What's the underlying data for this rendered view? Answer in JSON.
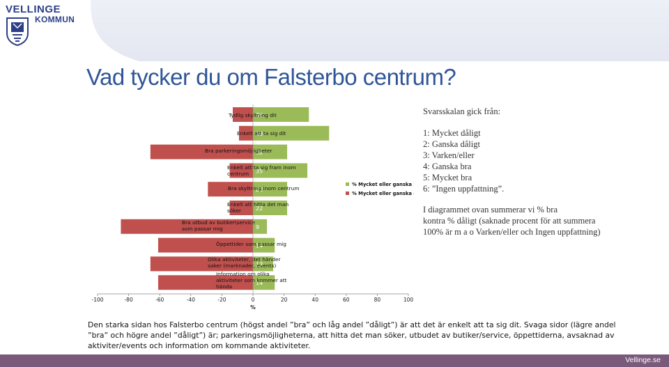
{
  "header": {
    "logo_name": "VELLINGE",
    "logo_sub": "KOMMUN",
    "logo_seal": "shield-icon"
  },
  "title": "Vad tycker du om Falsterbo centrum?",
  "chart_data": {
    "type": "bar",
    "orientation": "horizontal-diverging",
    "categories": [
      "Tydlig skyltning dit",
      "Enkelt att ta sig dit",
      "Bra parkeringsmöjligheter",
      "Enkelt att ta sig fram inom centrum",
      "Bra skyltning inom centrum",
      "Enkelt att hitta det man söker",
      "Bra utbud av butiker\\service som passar mig",
      "Öppettider som passar mig",
      "Olika aktiviteter, det händer saker (marknader, events)",
      "Information om olika aktiviteter som kommer att hända"
    ],
    "series": [
      {
        "name": "% Mycket eller ganska bra",
        "values": [
          36,
          49,
          22,
          35,
          22,
          22,
          9,
          14,
          13,
          14
        ],
        "color": "#9bbb59"
      },
      {
        "name": "% Mycket eller ganska dåligt",
        "values": [
          -13,
          -9,
          -66,
          -15,
          -29,
          -15,
          -85,
          -61,
          -66,
          -61
        ],
        "color": "#c0504d"
      }
    ],
    "data_labels": [
      "36",
      "49",
      "22",
      "35",
      "22",
      "22",
      "9",
      "14",
      "13",
      "14"
    ],
    "xlabel": "%",
    "xticks": [
      "-100",
      "-80",
      "-60",
      "-40",
      "-20",
      "0",
      "20",
      "40",
      "60",
      "80",
      "100"
    ],
    "xlim": [
      -100,
      100
    ],
    "legend": "right",
    "grid": false
  },
  "scale": {
    "heading": "Svarsskalan gick från:",
    "items": [
      "1: Mycket dåligt",
      "2: Ganska dåligt",
      "3: Varken/eller",
      "4: Ganska bra",
      "5: Mycket bra",
      "6: ”Ingen uppfattning”."
    ]
  },
  "summary": {
    "lines": [
      "I diagrammet ovan summerar vi % bra",
      "kontra % dåligt (saknade procent för att summera",
      "100% är m a o Varken/eller och Ingen uppfattning)"
    ]
  },
  "conclusion": {
    "lines": [
      "Den starka sidan hos Falsterbo centrum (högst andel ”bra” och låg andel ”dåligt”) är att det är enkelt att ta sig dit. Svaga sidor (lägre andel",
      "”bra” och högre andel ”dåligt”) är; parkeringsmöjligheterna, att hitta det man söker, utbudet av butiker/service, öppettiderna, avsaknad av",
      "aktiviter/events och information om kommande aktiviteter."
    ]
  },
  "footer": {
    "site": "Vellinge.se"
  }
}
